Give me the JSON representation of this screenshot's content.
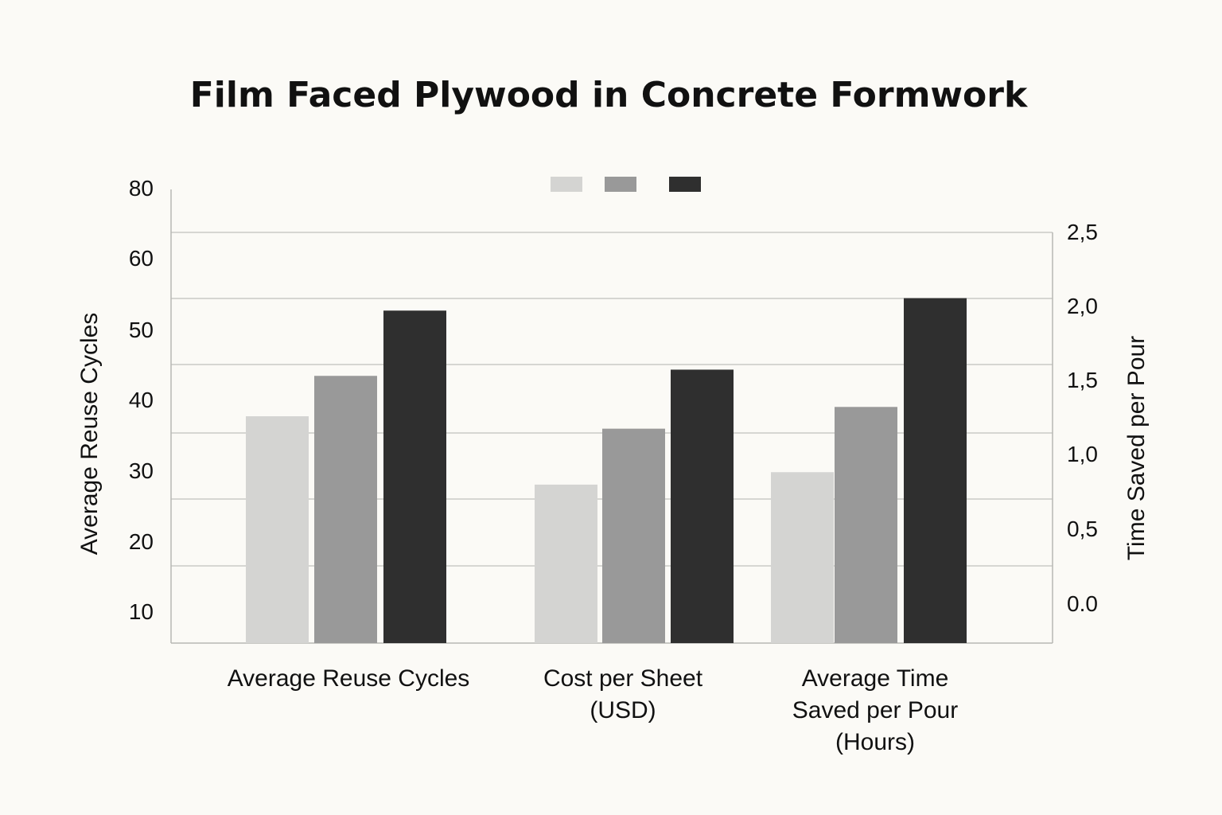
{
  "chart_data": {
    "type": "bar",
    "title": "Film Faced Plywood in Concrete Formwork",
    "categories": [
      [
        "Average Reuse Cycles"
      ],
      [
        "Cost per Sheet",
        "(USD)"
      ],
      [
        "Average Time",
        "Saved per Pour",
        "(Hours)"
      ]
    ],
    "series": [
      {
        "color": "#d4d4d2",
        "values": [
          42,
          31,
          33
        ]
      },
      {
        "color": "#999999",
        "values": [
          48.5,
          40,
          43.5
        ]
      },
      {
        "color": "#2f2f2f",
        "values": [
          59,
          49.5,
          61
        ]
      }
    ],
    "ylabel": "Average Reuse Cycles",
    "y2label": "Time Saved per Pour",
    "ylim": [
      5.5,
      78.5
    ],
    "y_ticks": [
      "80",
      "60",
      "50",
      "40",
      "30",
      "20",
      "10"
    ],
    "y2_ticks": [
      "2,5",
      "2,0",
      "1,5",
      "1,0",
      "0,5",
      "0.0"
    ],
    "legend_position": "top-center",
    "grid": true
  }
}
